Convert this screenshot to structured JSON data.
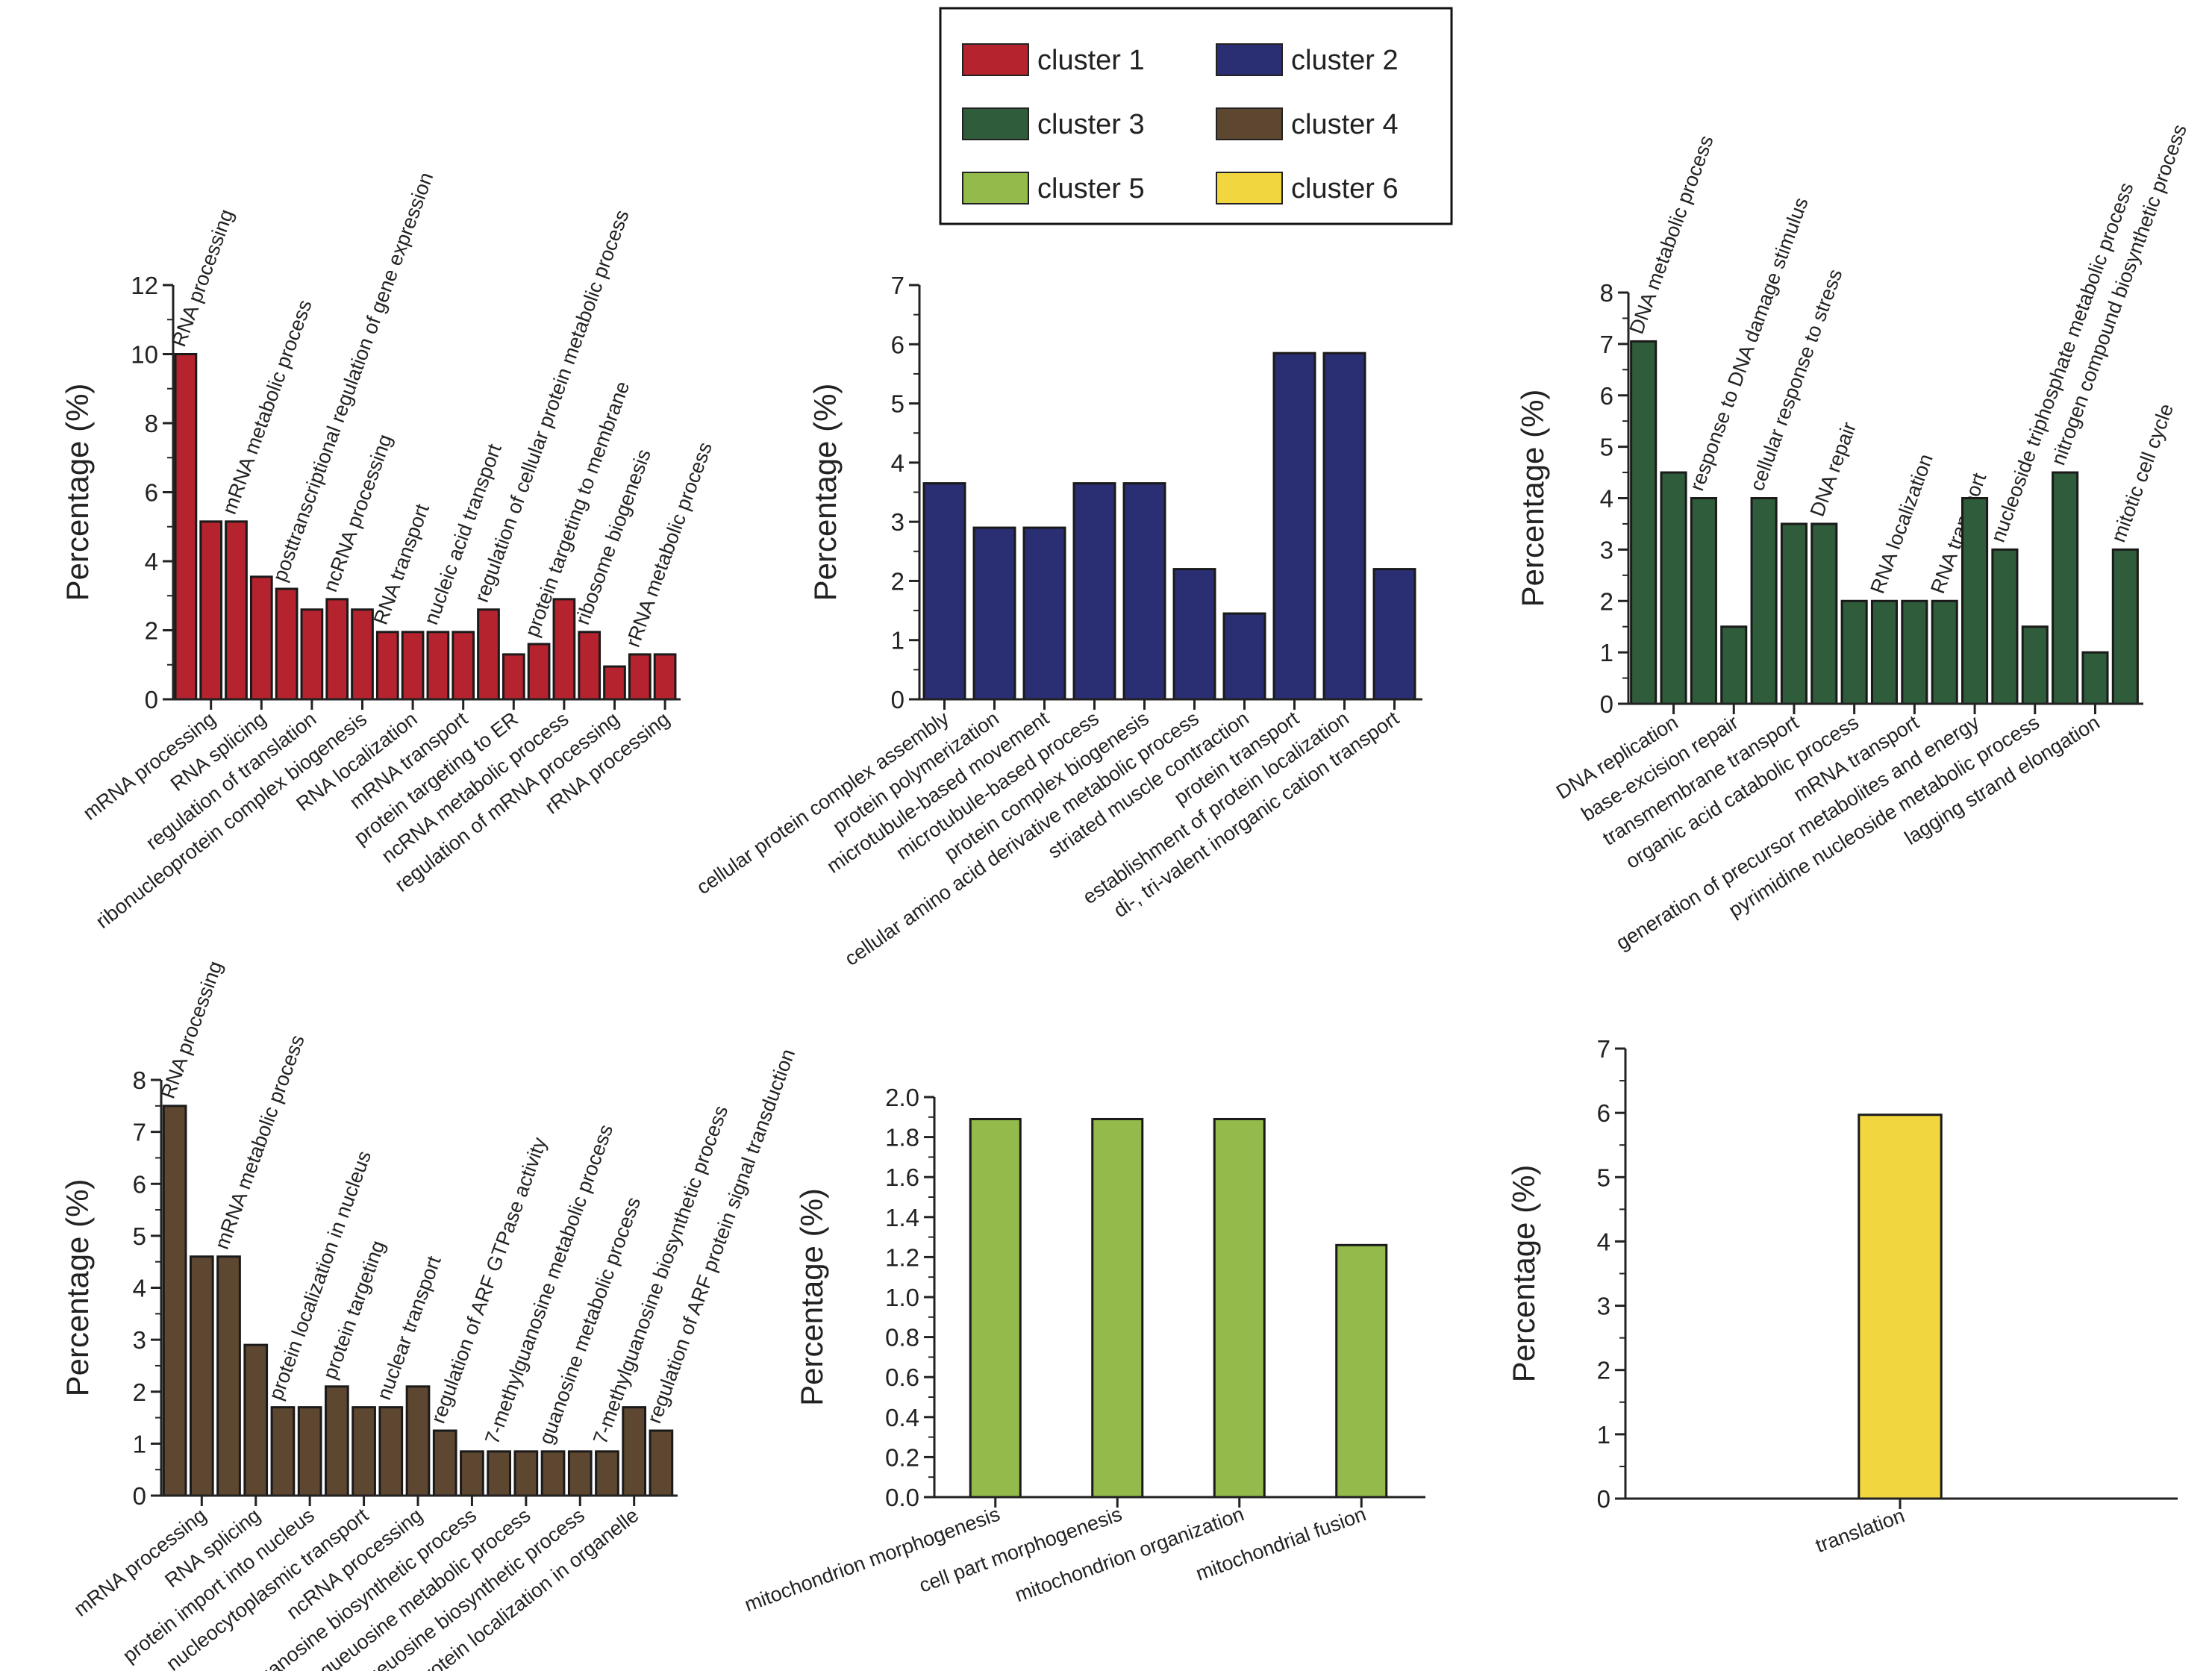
{
  "legend": {
    "entries": [
      {
        "label": "cluster 1",
        "color": "#b5232e"
      },
      {
        "label": "cluster 2",
        "color": "#2a2f73"
      },
      {
        "label": "cluster 3",
        "color": "#2f5c3a"
      },
      {
        "label": "cluster 4",
        "color": "#5e4731"
      },
      {
        "label": "cluster 5",
        "color": "#93ba4a"
      },
      {
        "label": "cluster 6",
        "color": "#f1d640"
      }
    ]
  },
  "chart_data": [
    {
      "type": "bar",
      "title": "cluster 1",
      "color": "#b5232e",
      "ylabel": "Percentage (%)",
      "ylim": [
        0,
        12
      ],
      "ystep": 2,
      "ytick_decimals": 0,
      "label_placement": "alternating",
      "categories": [
        "RNA processing",
        "mRNA processing",
        "mRNA metabolic process",
        "RNA splicing",
        "posttranscriptional regulation of gene expression",
        "regulation of translation",
        "ncRNA processing",
        "ribonucleoprotein complex biogenesis",
        "RNA transport",
        "RNA localization",
        "nucleic acid transport",
        "mRNA transport",
        "regulation of cellular protein metabolic process",
        "protein targeting to ER",
        "protein targeting to membrane",
        "ncRNA metabolic process",
        "ribosome biogenesis",
        "regulation of mRNA processing",
        "rRNA metabolic process",
        "rRNA processing"
      ],
      "values": [
        10,
        5.15,
        5.15,
        3.55,
        3.2,
        2.6,
        2.9,
        2.6,
        1.95,
        1.95,
        1.95,
        1.95,
        2.6,
        1.3,
        1.6,
        2.9,
        1.95,
        0.95,
        1.3,
        1.3
      ]
    },
    {
      "type": "bar",
      "title": "cluster 2",
      "color": "#2a2f73",
      "ylabel": "Percentage (%)",
      "ylim": [
        0,
        7
      ],
      "ystep": 1,
      "ytick_decimals": 0,
      "label_placement": "below",
      "categories": [
        "cellular protein complex assembly",
        "protein polymerization",
        "microtubule-based movement",
        "microtubule-based process",
        "protein complex biogenesis",
        "cellular amino acid derivative metabolic process",
        "striated muscle contraction",
        "protein transport",
        "establishment of protein localization",
        "di-, tri-valent inorganic cation transport"
      ],
      "values": [
        3.65,
        2.9,
        2.9,
        3.65,
        3.65,
        2.2,
        1.45,
        5.85,
        5.85,
        2.2
      ]
    },
    {
      "type": "bar",
      "title": "cluster 3",
      "color": "#2f5c3a",
      "ylabel": "Percentage (%)",
      "ylim": [
        0,
        8
      ],
      "ystep": 1,
      "ytick_decimals": 0,
      "label_placement": "alternating",
      "categories": [
        "DNA metabolic process",
        "DNA replication",
        "response to DNA damage stimulus",
        "base-excision repair",
        "cellular response to stress",
        "transmembrane transport",
        "DNA repair",
        "organic acid catabolic process",
        "RNA localization",
        "mRNA transport",
        "RNA transport",
        "generation of precursor metabolites and energy",
        "nucleoside triphosphate metabolic process",
        "pyrimidine nucleoside metabolic process",
        "nitrogen compound biosynthetic process",
        "lagging strand elongation",
        "mitotic cell cycle"
      ],
      "values": [
        7.05,
        4.5,
        4.0,
        1.5,
        4.0,
        3.5,
        3.5,
        2.0,
        2.0,
        2.0,
        2.0,
        4.0,
        3.0,
        1.5,
        4.5,
        1.0,
        3.0
      ]
    },
    {
      "type": "bar",
      "title": "cluster 4",
      "color": "#5e4731",
      "ylabel": "Percentage (%)",
      "ylim": [
        0,
        8
      ],
      "ystep": 1,
      "ytick_decimals": 0,
      "label_placement": "alternating",
      "categories": [
        "RNA processing",
        "mRNA processing",
        "mRNA metabolic process",
        "RNA splicing",
        "protein localization in nucleus",
        "protein import into nucleus",
        "protein targeting",
        "nucleocytoplasmic transport",
        "nuclear transport",
        "ncRNA processing",
        "regulation of ARF GTPase activity",
        "guanosine biosynthetic process",
        "7-methylguanosine metabolic process",
        "queuosine metabolic process",
        "guanosine metabolic process",
        "queuosine biosynthetic process",
        "7-methylguanosine biosynthetic process",
        "protein localization in organelle",
        "regulation of ARF protein signal transduction"
      ],
      "values": [
        7.5,
        4.6,
        4.6,
        2.9,
        1.7,
        1.7,
        2.1,
        1.7,
        1.7,
        2.1,
        1.25,
        0.85,
        0.85,
        0.85,
        0.85,
        0.85,
        0.85,
        1.7,
        1.25
      ]
    },
    {
      "type": "bar",
      "title": "cluster 5",
      "color": "#93ba4a",
      "ylabel": "Percentage (%)",
      "ylim": [
        0,
        2.0
      ],
      "ystep": 0.2,
      "ytick_decimals": 1,
      "label_placement": "below",
      "categories": [
        "mitochondrion morphogenesis",
        "cell part morphogenesis",
        "mitochondrion organization",
        "mitochondrial fusion"
      ],
      "values": [
        1.89,
        1.89,
        1.89,
        1.26
      ]
    },
    {
      "type": "bar",
      "title": "cluster 6",
      "color": "#f1d640",
      "ylabel": "Percentage (%)",
      "ylim": [
        0,
        7
      ],
      "ystep": 1,
      "ytick_decimals": 0,
      "label_placement": "below",
      "categories": [
        "translation"
      ],
      "values": [
        5.97
      ]
    }
  ]
}
